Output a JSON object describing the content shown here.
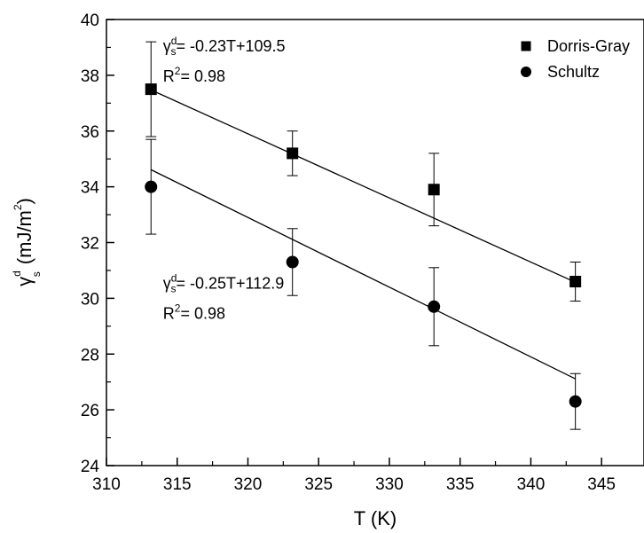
{
  "chart_data": {
    "type": "scatter",
    "title": "",
    "xlabel": "T (K)",
    "ylabel_main": "γ",
    "ylabel_sup": "d",
    "ylabel_sub": "s",
    "ylabel_unit_prefix": "(mJ/m",
    "ylabel_unit_sup": "2",
    "ylabel_unit_suffix": ")",
    "xlim": [
      310,
      348
    ],
    "ylim": [
      24,
      40
    ],
    "xticks": [
      310,
      315,
      320,
      325,
      330,
      335,
      340,
      345
    ],
    "yticks": [
      24,
      26,
      28,
      30,
      32,
      34,
      36,
      38,
      40
    ],
    "grid": false,
    "legend_position": "top-right",
    "series": [
      {
        "name": "Dorris-Gray",
        "marker": "square",
        "color": "#000000",
        "x": [
          313.15,
          323.15,
          333.15,
          343.15
        ],
        "y": [
          37.5,
          35.2,
          33.9,
          30.6
        ],
        "error": [
          1.7,
          0.8,
          1.3,
          0.7
        ],
        "fit": {
          "slope": -0.23,
          "intercept": 109.5
        }
      },
      {
        "name": "Schultz",
        "marker": "circle",
        "color": "#000000",
        "x": [
          313.15,
          323.15,
          333.15,
          343.15
        ],
        "y": [
          34.0,
          31.3,
          29.7,
          26.3
        ],
        "error": [
          1.7,
          1.2,
          1.4,
          1.0
        ],
        "fit": {
          "slope": -0.25,
          "intercept": 112.9
        }
      }
    ],
    "annotations": [
      {
        "eq_prefix": "γ",
        "eq_sup": "d",
        "eq_sub": "s",
        "eq_text": "= -0.23T+109.5",
        "r2_prefix": "R",
        "r2_sup": "2",
        "r2_text": "= 0.98",
        "anchor_x": 314,
        "anchor_y": 38.85
      },
      {
        "eq_prefix": "γ",
        "eq_sup": "d",
        "eq_sub": "s",
        "eq_text": "= -0.25T+112.9",
        "r2_prefix": "R",
        "r2_sup": "2",
        "r2_text": "= 0.98",
        "anchor_x": 314,
        "anchor_y": 30.35
      }
    ]
  }
}
